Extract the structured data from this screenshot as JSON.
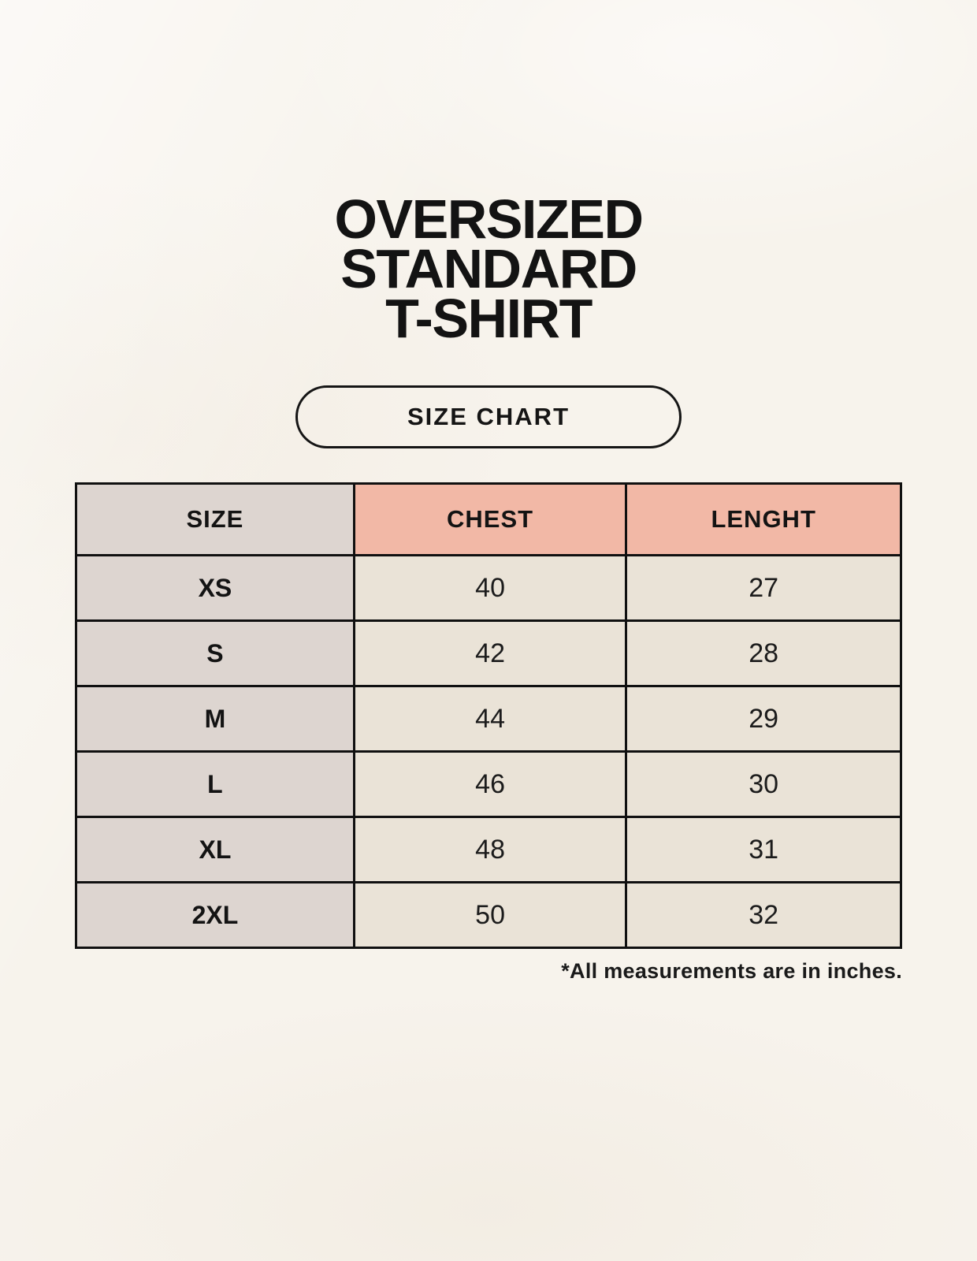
{
  "page": {
    "title_lines": [
      "OVERSIZED",
      "STANDARD",
      "T-SHIRT"
    ],
    "badge_label": "SIZE CHART",
    "footnote": "*All measurements are in inches."
  },
  "chart_data": {
    "type": "table",
    "columns": [
      "SIZE",
      "CHEST",
      "LENGHT"
    ],
    "rows": [
      [
        "XS",
        "40",
        "27"
      ],
      [
        "S",
        "42",
        "28"
      ],
      [
        "M",
        "44",
        "29"
      ],
      [
        "L",
        "46",
        "30"
      ],
      [
        "XL",
        "48",
        "31"
      ],
      [
        "2XL",
        "50",
        "32"
      ]
    ],
    "units_note": "inches"
  },
  "colors": {
    "background": "#f7f3ec",
    "size_column": "#ddd5d0",
    "header_accent": "#f2b8a6",
    "data_cell": "#eae3d7",
    "border": "#101010",
    "text": "#141414"
  }
}
